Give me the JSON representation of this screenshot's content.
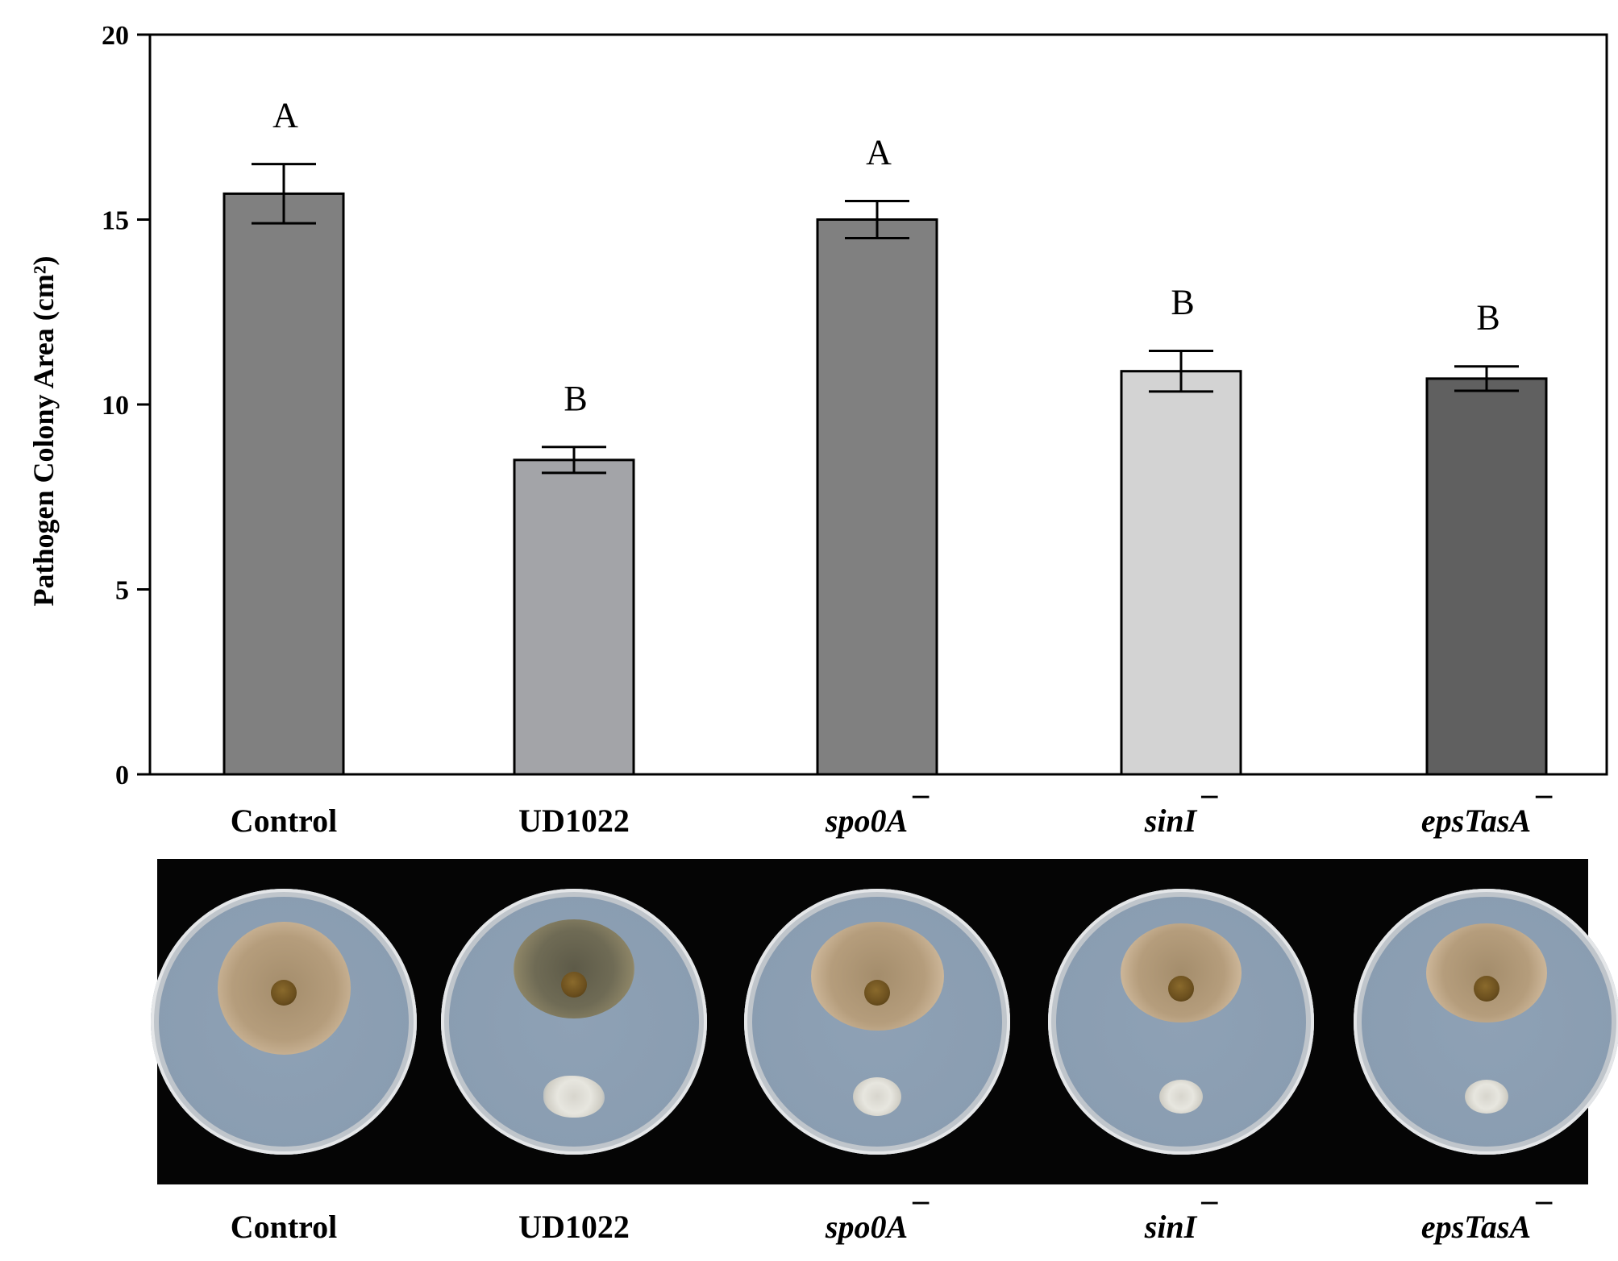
{
  "chart_data": {
    "type": "bar",
    "ylabel": "Pathogen Colony Area (cm²)",
    "ylim": [
      0,
      20
    ],
    "yticks": [
      0,
      5,
      10,
      15,
      20
    ],
    "categories": [
      {
        "label": "Control",
        "italic": false,
        "superscript": ""
      },
      {
        "label": "UD1022",
        "italic": false,
        "superscript": ""
      },
      {
        "label": "spo0A",
        "italic": true,
        "superscript": "¯"
      },
      {
        "label": "sinI",
        "italic": true,
        "superscript": "¯"
      },
      {
        "label": "epsTasA",
        "italic": true,
        "superscript": "¯"
      }
    ],
    "values": [
      15.7,
      8.5,
      15.0,
      10.9,
      10.7
    ],
    "errors": [
      0.8,
      0.35,
      0.5,
      0.55,
      0.33
    ],
    "significance": [
      "A",
      "B",
      "A",
      "B",
      "B"
    ],
    "bar_colors": [
      "#808080",
      "#a3a4a8",
      "#808080",
      "#d3d3d3",
      "#606060"
    ],
    "grid": false,
    "legend": "none"
  },
  "photo_panel": {
    "labels": [
      {
        "label": "Control",
        "italic": false,
        "superscript": ""
      },
      {
        "label": "UD1022",
        "italic": false,
        "superscript": ""
      },
      {
        "label": "spo0A",
        "italic": true,
        "superscript": "¯"
      },
      {
        "label": "sinI",
        "italic": true,
        "superscript": "¯"
      },
      {
        "label": "epsTasA",
        "italic": true,
        "superscript": "¯"
      }
    ]
  }
}
